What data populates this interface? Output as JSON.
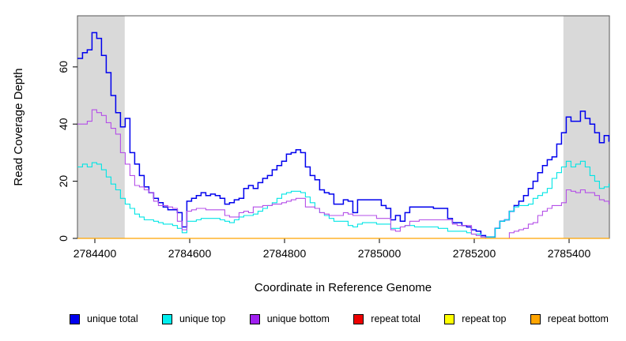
{
  "chart_data": {
    "type": "line",
    "subtype": "step-after",
    "title": "",
    "xlabel": "Coordinate in Reference Genome",
    "ylabel": "Read Coverage Depth",
    "xlim": [
      2784363,
      2785484
    ],
    "ylim": [
      0,
      77
    ],
    "x_ticks": [
      2784400,
      2784600,
      2784800,
      2785000,
      2785200,
      2785400
    ],
    "y_ticks": [
      0,
      20,
      40,
      60
    ],
    "grid": false,
    "legend_position": "bottom",
    "highlight_regions": [
      {
        "label": "left-flank",
        "x0": 2784363,
        "x1": 2784463,
        "color": "#d9d9d9"
      },
      {
        "label": "right-flank",
        "x0": 2785388,
        "x1": 2785484,
        "color": "#d9d9d9"
      }
    ],
    "x_start": 2784364,
    "x_step": 10,
    "n_points": 113,
    "series": [
      {
        "name": "unique total",
        "color": "#0000EE",
        "width": 1.5,
        "values": [
          63,
          65,
          66,
          72,
          70,
          64,
          58,
          50,
          44,
          39,
          42,
          30,
          26,
          22,
          18,
          16,
          14,
          12.5,
          11,
          10,
          10,
          9,
          4,
          13,
          14,
          15,
          16,
          15,
          15.5,
          15,
          14,
          12,
          12.5,
          13.5,
          14,
          17.5,
          18.5,
          17.5,
          19.5,
          21,
          22,
          24,
          25.5,
          27,
          29.5,
          30,
          31,
          30,
          25,
          22,
          20.5,
          17,
          16,
          15.5,
          12,
          12,
          13.5,
          13,
          9,
          13.5,
          13.5,
          13.5,
          13.5,
          13.5,
          11.5,
          10.5,
          6.5,
          8,
          6,
          9,
          11,
          11,
          11,
          11,
          11,
          10.5,
          10.5,
          10.5,
          7,
          5.5,
          5.5,
          4.5,
          4,
          3,
          2.5,
          1,
          0.5,
          0.5,
          3.5,
          6,
          6.5,
          9.5,
          11.5,
          13,
          15,
          17.5,
          20,
          23,
          25.5,
          27.5,
          28.5,
          33,
          37,
          42.5,
          41,
          41,
          44.5,
          42,
          40,
          37,
          33.5,
          36,
          34
        ]
      },
      {
        "name": "unique top",
        "color": "#00E5E5",
        "width": 1.1,
        "values": [
          25,
          26,
          25,
          26.5,
          26,
          24,
          21.5,
          19,
          17,
          14,
          12,
          10.5,
          8.5,
          7.5,
          6.5,
          6.5,
          6,
          5.5,
          5,
          5,
          4.5,
          3.5,
          2,
          6,
          6,
          6.5,
          7,
          7,
          7,
          7,
          6.5,
          6,
          5.5,
          6.5,
          7.5,
          8,
          8,
          8.5,
          9.5,
          10.5,
          11.5,
          12.5,
          14,
          15.5,
          16,
          16.5,
          16.5,
          16,
          14.5,
          12.5,
          10.5,
          9,
          8,
          7,
          6,
          6,
          6,
          4.5,
          4,
          5,
          5.5,
          5.5,
          5.5,
          5,
          5,
          5,
          3.5,
          3.5,
          4,
          4.5,
          4.5,
          4,
          4,
          4,
          4,
          4,
          3.5,
          3.5,
          2.5,
          2.5,
          2.5,
          2.5,
          2,
          1.5,
          1.5,
          0.5,
          0.5,
          0.5,
          3.5,
          6,
          6.5,
          9.5,
          11,
          11.5,
          11.5,
          12,
          14,
          15,
          16,
          17.5,
          21,
          23,
          25,
          27,
          25,
          26,
          27,
          25,
          22,
          20,
          17.5,
          18,
          19
        ]
      },
      {
        "name": "unique bottom",
        "color": "#B44FE8",
        "width": 1.1,
        "values": [
          40,
          40,
          41,
          45,
          44,
          43,
          40.5,
          38.5,
          36.5,
          30,
          26,
          22,
          18.5,
          18,
          17,
          16,
          13,
          11.5,
          11.5,
          11,
          10.5,
          6,
          3,
          9.5,
          10,
          10.5,
          10.5,
          10,
          10,
          10,
          10,
          8,
          7.5,
          7.5,
          9,
          9.5,
          9,
          11,
          11,
          11.5,
          11.5,
          12,
          12,
          12.5,
          13,
          13.5,
          14,
          14,
          11,
          11,
          10.5,
          9,
          8.5,
          8,
          8,
          8,
          9,
          8.5,
          8,
          8,
          8,
          8,
          8,
          7,
          7,
          7,
          3,
          2.5,
          4,
          4.5,
          6,
          6,
          6.5,
          6.5,
          6.5,
          6.5,
          6.5,
          6.5,
          6.5,
          5,
          4.5,
          4.5,
          4.5,
          1.5,
          1,
          0.5,
          0,
          0,
          0,
          0,
          0,
          2,
          2.5,
          3,
          3.5,
          5,
          5.5,
          8,
          9.5,
          10.5,
          11.5,
          11.5,
          12.5,
          17,
          16.5,
          16,
          17,
          16,
          16,
          15,
          13.5,
          13,
          12
        ]
      },
      {
        "name": "repeat total",
        "color": "#EE0000",
        "width": 1.1,
        "constant_value": 0
      },
      {
        "name": "repeat top",
        "color": "#FFFF00",
        "width": 1.1,
        "constant_value": 0
      },
      {
        "name": "repeat bottom",
        "color": "#FFA500",
        "width": 1.2,
        "constant_value": 0
      }
    ],
    "legend_swatch_colors": {
      "unique_total": "#0000EE",
      "unique_top": "#00EEEE",
      "unique_bottom": "#A020F0",
      "repeat_total": "#EE0000",
      "repeat_top": "#FFFF00",
      "repeat_bottom": "#FFA500"
    }
  },
  "layout_text": {
    "x_axis_label": "Coordinate in Reference Genome",
    "y_axis_label": "Read Coverage Depth"
  }
}
